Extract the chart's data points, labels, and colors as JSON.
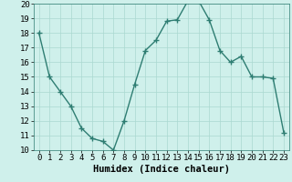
{
  "x": [
    0,
    1,
    2,
    3,
    4,
    5,
    6,
    7,
    8,
    9,
    10,
    11,
    12,
    13,
    14,
    15,
    16,
    17,
    18,
    19,
    20,
    21,
    22,
    23
  ],
  "y": [
    18,
    15,
    14,
    13,
    11.5,
    10.8,
    10.6,
    10,
    12,
    14.5,
    16.8,
    17.5,
    18.8,
    18.9,
    20.2,
    20.2,
    18.9,
    16.8,
    16,
    16.4,
    15,
    15,
    14.9,
    11.2
  ],
  "line_color": "#2e7d72",
  "marker": "+",
  "markersize": 4,
  "linewidth": 1.0,
  "bg_color": "#cff0eb",
  "grid_color": "#aad8d0",
  "xlabel": "Humidex (Indice chaleur)",
  "xlabel_fontsize": 7.5,
  "tick_fontsize": 6.5,
  "ylim": [
    10,
    20
  ],
  "xlim": [
    -0.5,
    23.5
  ],
  "yticks": [
    10,
    11,
    12,
    13,
    14,
    15,
    16,
    17,
    18,
    19,
    20
  ],
  "xticks": [
    0,
    1,
    2,
    3,
    4,
    5,
    6,
    7,
    8,
    9,
    10,
    11,
    12,
    13,
    14,
    15,
    16,
    17,
    18,
    19,
    20,
    21,
    22,
    23
  ]
}
